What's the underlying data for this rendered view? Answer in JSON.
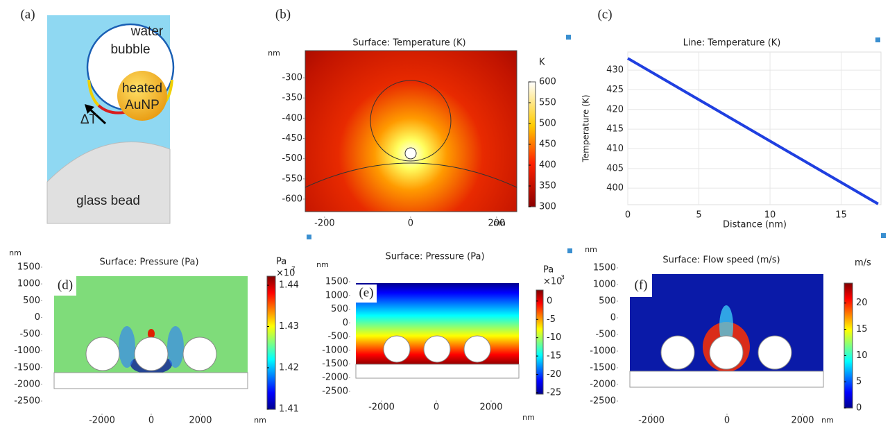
{
  "diagram": {
    "label": "(a)",
    "water": "water",
    "bubble": "bubble",
    "particle_line1": "heated",
    "particle_line2": "AuNP",
    "delta": "ΔT",
    "bead": "glass bead"
  },
  "chart_data": [
    {
      "type": "heatmap",
      "label": "(b)",
      "title": "Surface: Temperature (K)",
      "y_unit": "nm",
      "x_unit": "nm",
      "xlim": [
        -245,
        247
      ],
      "xticks": [
        -200,
        0,
        200
      ],
      "ylim": [
        -631,
        -233
      ],
      "yticks": [
        -600,
        -550,
        -500,
        -450,
        -400,
        -350,
        -300
      ],
      "colorbar": {
        "unit": "K",
        "lim": [
          300,
          600
        ],
        "ticks": [
          300,
          350,
          400,
          450,
          500,
          550,
          600
        ]
      }
    },
    {
      "type": "line",
      "label": "(c)",
      "title": "Line: Temperature (K)",
      "x_label": "Distance (nm)",
      "y_label": "Temperature (K)",
      "x": [
        0,
        17.6
      ],
      "series": [
        {
          "color": "#1f3fe0",
          "values": [
            433,
            396
          ]
        }
      ],
      "xlim": [
        0,
        17.8
      ],
      "xticks": [
        0,
        5,
        10,
        15
      ],
      "ylim": [
        395.8,
        434.6
      ],
      "yticks": [
        400,
        405,
        410,
        415,
        420,
        425,
        430
      ],
      "grid": true
    },
    {
      "type": "heatmap",
      "label": "(d)",
      "title": "Surface: Pressure (Pa)",
      "y_unit": "nm",
      "x_unit": "nm",
      "xlim": [
        -4451,
        4000
      ],
      "xticks": [
        -2000,
        0,
        2000
      ],
      "ylim": [
        -3039,
        1604
      ],
      "yticks": [
        -2500,
        -2000,
        -1500,
        -1000,
        -500,
        0,
        500,
        1000,
        1500
      ],
      "colorbar": {
        "unit": "Pa",
        "scale": "×10",
        "scale_exp": "7",
        "lim": [
          1.4099,
          1.4422
        ],
        "ticks": [
          1.41,
          1.42,
          1.43,
          1.44
        ]
      }
    },
    {
      "type": "heatmap",
      "label": "(e)",
      "title": "Surface: Pressure (Pa)",
      "y_unit": "nm",
      "x_unit": "nm",
      "xlim": [
        -4025,
        3316
      ],
      "xticks": [
        -2000,
        0,
        2000
      ],
      "ylim": [
        -3361,
        1703
      ],
      "yticks": [
        -2500,
        -2000,
        -1500,
        -1000,
        -500,
        0,
        500,
        1000,
        1500
      ],
      "colorbar": {
        "unit": "Pa",
        "scale": "×10",
        "scale_exp": "-3",
        "lim": [
          -25.4,
          3.0
        ],
        "ticks": [
          -25,
          -20,
          -15,
          -10,
          -5,
          0
        ]
      }
    },
    {
      "type": "heatmap",
      "label": "(f)",
      "title": "Surface: Flow speed (m/s)",
      "y_unit": "nm",
      "x_unit": "nm",
      "xlim": [
        -2991,
        2697
      ],
      "xticks": [
        -2000,
        0,
        2000
      ],
      "ylim": [
        -2917,
        1667
      ],
      "yticks": [
        -2500,
        -2000,
        -1500,
        -1000,
        -500,
        0,
        500,
        1000,
        1500
      ],
      "colorbar": {
        "unit": "m/s",
        "lim": [
          0,
          23.8
        ],
        "ticks": [
          0,
          5,
          10,
          15,
          20
        ]
      }
    }
  ]
}
